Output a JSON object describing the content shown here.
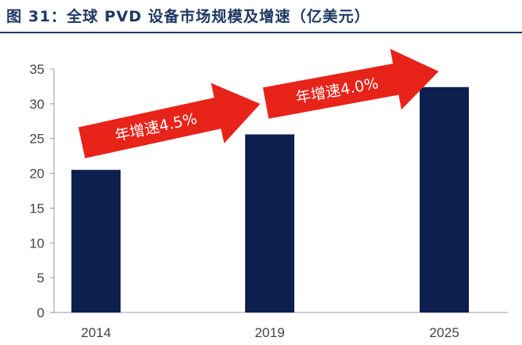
{
  "figure_title": "图 31：全球 PVD 设备市场规模及增速（亿美元）",
  "colors": {
    "bar": "#0d1f4f",
    "arrow": "#e8231a",
    "axis": "#9a9a9a",
    "title": "#1f3864"
  },
  "chart_data": {
    "type": "bar",
    "title": "",
    "xlabel": "",
    "ylabel": "",
    "categories": [
      "2014",
      "2019",
      "2025"
    ],
    "values": [
      20.5,
      25.6,
      32.4
    ],
    "ylim": [
      0,
      35
    ],
    "yticks": [
      0,
      5,
      10,
      15,
      20,
      25,
      30,
      35
    ],
    "grid": false,
    "legend": "none",
    "annotations": [
      {
        "from": "2014",
        "to": "2019",
        "text": "年增速4.5%"
      },
      {
        "from": "2019",
        "to": "2025",
        "text": "年增速4.0%"
      }
    ]
  }
}
